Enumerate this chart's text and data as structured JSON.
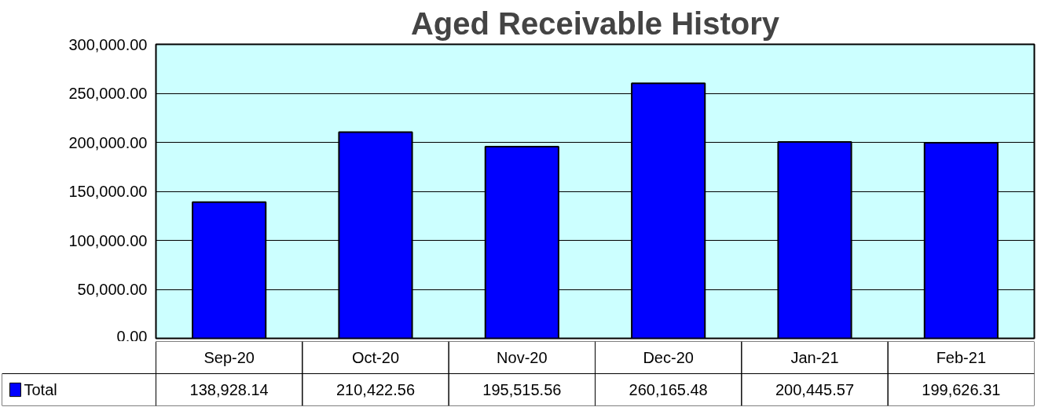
{
  "chart_data": {
    "type": "bar",
    "title": "Aged Receivable History",
    "categories": [
      "Sep-20",
      "Oct-20",
      "Nov-20",
      "Dec-20",
      "Jan-21",
      "Feb-21"
    ],
    "series": [
      {
        "name": "Total",
        "color": "#0000ff",
        "values": [
          138928.14,
          210422.56,
          195515.56,
          260165.48,
          200445.57,
          199626.31
        ],
        "value_labels": [
          "138,928.14",
          "210,422.56",
          "195,515.56",
          "260,165.48",
          "200,445.57",
          "199,626.31"
        ]
      }
    ],
    "ylim": [
      0,
      300000
    ],
    "yticks": [
      {
        "value": 0,
        "label": "0.00"
      },
      {
        "value": 50000,
        "label": "50,000.00"
      },
      {
        "value": 100000,
        "label": "100,000.00"
      },
      {
        "value": 150000,
        "label": "150,000.00"
      },
      {
        "value": 200000,
        "label": "200,000.00"
      },
      {
        "value": 250000,
        "label": "250,000.00"
      },
      {
        "value": 300000,
        "label": "300,000.00"
      }
    ],
    "grid": "y",
    "legend": "bottom left"
  }
}
